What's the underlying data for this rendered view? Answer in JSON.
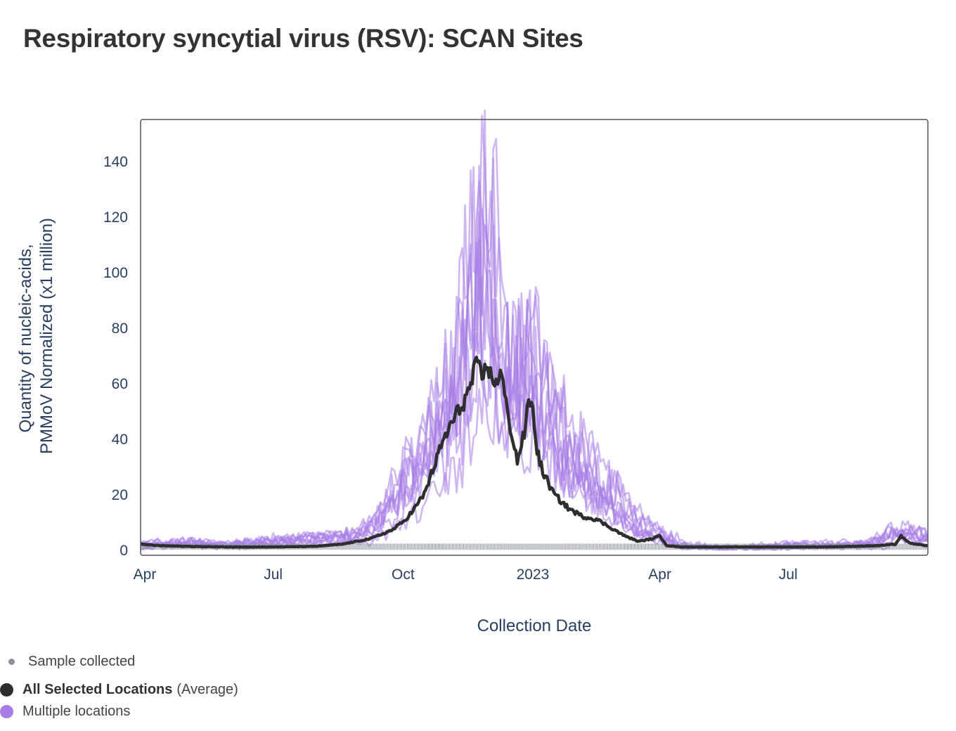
{
  "title": "Respiratory syncytial virus (RSV): SCAN Sites",
  "colors": {
    "average": "#2e2e2e",
    "locations": "#a77ee6",
    "sample_marker": "#8b919c",
    "axis_text": "#2a3f5f"
  },
  "chart_data": {
    "type": "line",
    "title": "Respiratory syncytial virus (RSV): SCAN Sites",
    "xlabel": "Collection Date",
    "ylabel_lines": [
      "Quantity of nucleic-acids,",
      "PMMoV Normalized (x1 million)"
    ],
    "x_range_days": [
      -3,
      555
    ],
    "ylim": [
      -2,
      155
    ],
    "x_ticks": [
      {
        "label": "Apr",
        "day": 0
      },
      {
        "label": "Jul",
        "day": 91
      },
      {
        "label": "Oct",
        "day": 183
      },
      {
        "label": "2023",
        "day": 275
      },
      {
        "label": "Apr",
        "day": 365
      },
      {
        "label": "Jul",
        "day": 456
      }
    ],
    "y_ticks": [
      0,
      20,
      40,
      60,
      80,
      100,
      120,
      140
    ],
    "x_day_zero": "2022-04-01",
    "series": [
      {
        "name": "All Selected Locations (Average)",
        "x": [
          -3,
          10,
          30,
          60,
          91,
          120,
          140,
          160,
          175,
          183,
          190,
          198,
          205,
          212,
          220,
          228,
          235,
          240,
          243,
          246,
          250,
          253,
          256,
          260,
          264,
          270,
          272,
          275,
          278,
          282,
          290,
          300,
          310,
          320,
          330,
          340,
          350,
          360,
          365,
          370,
          380,
          400,
          430,
          456,
          480,
          500,
          520,
          532,
          536,
          540,
          545,
          549,
          552
        ],
        "values": [
          2,
          1.5,
          1.2,
          1,
          1,
          1.2,
          2,
          4,
          7,
          10,
          14,
          20,
          30,
          40,
          48,
          55,
          66,
          62,
          68,
          60,
          62,
          63,
          52,
          42,
          32,
          44,
          55,
          50,
          36,
          28,
          20,
          15,
          12,
          11,
          8,
          5,
          3,
          4,
          5,
          1.5,
          1,
          1,
          1,
          1,
          1,
          1.2,
          1.5,
          2,
          5,
          3,
          2,
          2,
          1.5
        ]
      },
      {
        "name": "Multiple locations",
        "x": [
          -3,
          30,
          60,
          91,
          120,
          150,
          160,
          170,
          180,
          190,
          200,
          210,
          220,
          230,
          235,
          240,
          245,
          250,
          255,
          260,
          265,
          270,
          275,
          280,
          285,
          290,
          300,
          310,
          320,
          330,
          340,
          350,
          360,
          370,
          380,
          400,
          430,
          460,
          490,
          520,
          530,
          540,
          550
        ],
        "values": [
          3,
          4,
          3,
          5,
          6,
          7,
          10,
          15,
          25,
          35,
          45,
          55,
          70,
          90,
          120,
          140,
          128,
          100,
          75,
          70,
          85,
          88,
          80,
          70,
          60,
          55,
          45,
          40,
          30,
          25,
          18,
          12,
          9,
          6,
          3,
          2,
          2,
          3,
          3,
          4,
          8,
          9,
          7
        ]
      }
    ],
    "legend": [
      {
        "key": "sample",
        "label": "Sample collected"
      },
      {
        "key": "average",
        "label": "All Selected Locations",
        "suffix": "(Average)"
      },
      {
        "key": "locations",
        "label": "Multiple locations"
      }
    ]
  }
}
